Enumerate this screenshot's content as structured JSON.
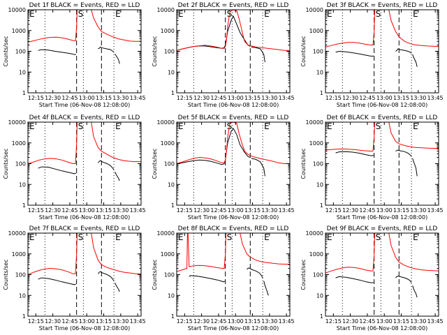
{
  "page": {
    "background": "#ffffff"
  },
  "colors": {
    "events": "#000000",
    "lld": "#ff0000",
    "axis": "#000000"
  },
  "shared": {
    "ylabel": "Counts/sec",
    "xlabel": "Start Time (06-Nov-08 12:08:00)",
    "xtick_labels": [
      "12:15",
      "12:30",
      "12:45",
      "13:00",
      "13:15",
      "13:30",
      "13:45"
    ],
    "xtick_minutes": [
      7,
      22,
      37,
      52,
      67,
      82,
      97
    ],
    "xlim_minutes": [
      0,
      100
    ],
    "ytick_labels": [
      "1",
      "10",
      "100",
      "1000",
      "10000"
    ],
    "ytick_values": [
      1,
      10,
      100,
      1000,
      10000
    ],
    "ylim": [
      1,
      10000
    ],
    "yscale": "log",
    "markers": [
      {
        "label": "E",
        "minute": 0,
        "line": "none"
      },
      {
        "label": "",
        "minute": 15,
        "line": "dotted"
      },
      {
        "label": "S",
        "minute": 43,
        "line": "dashed"
      },
      {
        "label": "",
        "minute": 49,
        "line": "dotted"
      },
      {
        "label": "",
        "minute": 65,
        "line": "dashed"
      },
      {
        "label": "E",
        "minute": 76,
        "line": "dotted"
      }
    ]
  },
  "chart_data": [
    {
      "type": "line",
      "title": "Det 1f BLACK = Events, RED = LLD",
      "series": [
        {
          "name": "Events",
          "x": [
            9,
            12,
            18,
            24,
            30,
            36,
            39,
            41,
            42.5,
            "|",
            62,
            63,
            64,
            66,
            70,
            73,
            75,
            76,
            "|",
            77,
            78,
            80,
            81
          ],
          "y": [
            110,
            120,
            115,
            100,
            90,
            80,
            75,
            70,
            70,
            null,
            130,
            140,
            160,
            145,
            130,
            120,
            100,
            90,
            null,
            75,
            60,
            40,
            25
          ]
        },
        {
          "name": "LLD",
          "x": [
            0,
            5,
            10,
            15,
            20,
            25,
            30,
            35,
            40,
            42,
            43,
            43.5,
            "|",
            56,
            58,
            62,
            65,
            70,
            75,
            80,
            85,
            90,
            95,
            100
          ],
          "y": [
            280,
            320,
            380,
            430,
            470,
            480,
            450,
            390,
            330,
            320,
            1500,
            10000,
            null,
            10000,
            4000,
            1500,
            900,
            650,
            500,
            400,
            350,
            310,
            300,
            300
          ]
        }
      ]
    },
    {
      "type": "line",
      "title": "Det 2f BLACK = Events, RED = LLD",
      "series": [
        {
          "name": "Events",
          "x": [
            0,
            5,
            10,
            15,
            20,
            25,
            30,
            35,
            40,
            42,
            43,
            44,
            45,
            48,
            50,
            53,
            56,
            60,
            63,
            65,
            "|",
            66,
            70,
            74,
            77,
            78
          ],
          "y": [
            110,
            130,
            150,
            170,
            180,
            180,
            165,
            150,
            140,
            150,
            200,
            400,
            900,
            3000,
            5000,
            2000,
            800,
            350,
            200,
            170,
            null,
            160,
            150,
            130,
            70,
            30
          ]
        },
        {
          "name": "LLD",
          "x": [
            0,
            5,
            10,
            15,
            20,
            25,
            30,
            35,
            40,
            42,
            43,
            44,
            45,
            47,
            50,
            53,
            55,
            58,
            60,
            63,
            66,
            70,
            75,
            80,
            85,
            90,
            95,
            100
          ],
          "y": [
            110,
            130,
            150,
            170,
            185,
            195,
            180,
            160,
            140,
            140,
            170,
            350,
            1500,
            8000,
            10000,
            9000,
            4000,
            800,
            300,
            200,
            180,
            160,
            150,
            140,
            130,
            120,
            110,
            110
          ]
        }
      ]
    },
    {
      "type": "line",
      "title": "Det 3f BLACK = Events, RED = LLD",
      "series": [
        {
          "name": "Events",
          "x": [
            9,
            12,
            18,
            24,
            30,
            36,
            39,
            41,
            42.5,
            "|",
            62,
            63,
            64,
            66,
            70,
            73,
            75,
            76,
            "|",
            77,
            78,
            80,
            81
          ],
          "y": [
            90,
            100,
            95,
            85,
            75,
            65,
            60,
            58,
            60,
            null,
            100,
            110,
            130,
            120,
            110,
            100,
            90,
            80,
            null,
            70,
            50,
            30,
            18
          ]
        },
        {
          "name": "LLD",
          "x": [
            0,
            5,
            10,
            15,
            20,
            25,
            30,
            35,
            40,
            42,
            43,
            43.5,
            "|",
            56,
            58,
            62,
            65,
            70,
            75,
            80,
            85,
            90,
            95,
            100
          ],
          "y": [
            160,
            190,
            220,
            250,
            270,
            270,
            250,
            220,
            200,
            200,
            900,
            10000,
            null,
            10000,
            3000,
            900,
            500,
            300,
            230,
            200,
            190,
            180,
            175,
            170
          ]
        }
      ]
    },
    {
      "type": "line",
      "title": "Det 4f BLACK = Events, RED = LLD",
      "series": [
        {
          "name": "Events",
          "x": [
            9,
            12,
            18,
            24,
            30,
            36,
            39,
            41,
            42.5,
            "|",
            62,
            63,
            64,
            66,
            70,
            73,
            75,
            76,
            "|",
            77,
            78,
            80,
            81
          ],
          "y": [
            60,
            70,
            68,
            55,
            45,
            38,
            35,
            33,
            35,
            null,
            110,
            130,
            140,
            120,
            100,
            80,
            60,
            50,
            null,
            40,
            30,
            20,
            15
          ]
        },
        {
          "name": "LLD",
          "x": [
            0,
            5,
            10,
            15,
            20,
            25,
            30,
            35,
            40,
            42,
            43,
            43.5,
            "|",
            56,
            58,
            62,
            65,
            70,
            75,
            80,
            85,
            90,
            95,
            100
          ],
          "y": [
            100,
            120,
            150,
            170,
            180,
            170,
            150,
            120,
            100,
            100,
            900,
            10000,
            null,
            10000,
            2000,
            600,
            400,
            280,
            200,
            160,
            140,
            130,
            125,
            125
          ]
        }
      ]
    },
    {
      "type": "line",
      "title": "Det 5f BLACK = Events, RED = LLD",
      "series": [
        {
          "name": "Events",
          "x": [
            0,
            5,
            10,
            15,
            20,
            25,
            30,
            35,
            40,
            42,
            43,
            44,
            45,
            48,
            50,
            53,
            56,
            60,
            63,
            65,
            "|",
            66,
            70,
            74,
            77,
            78
          ],
          "y": [
            100,
            110,
            125,
            140,
            150,
            145,
            130,
            110,
            90,
            100,
            150,
            400,
            1000,
            3500,
            5000,
            2500,
            800,
            350,
            220,
            200,
            null,
            180,
            160,
            120,
            60,
            25
          ]
        },
        {
          "name": "LLD",
          "x": [
            0,
            5,
            10,
            15,
            20,
            25,
            30,
            35,
            40,
            42,
            43,
            44,
            45,
            47,
            50,
            53,
            55,
            58,
            60,
            63,
            66,
            70,
            75,
            80,
            85,
            90,
            95,
            100
          ],
          "y": [
            100,
            120,
            150,
            180,
            200,
            190,
            170,
            140,
            110,
            110,
            150,
            400,
            1800,
            9000,
            10000,
            9000,
            3000,
            800,
            400,
            280,
            230,
            200,
            170,
            150,
            130,
            110,
            100,
            100
          ]
        }
      ]
    },
    {
      "type": "line",
      "title": "Det 6f BLACK = Events, RED = LLD",
      "series": [
        {
          "name": "Events",
          "x": [
            9,
            12,
            18,
            24,
            30,
            36,
            39,
            41,
            42.5,
            "|",
            62,
            63,
            64,
            66,
            70,
            73,
            75,
            76,
            "|",
            77,
            78,
            80,
            81
          ],
          "y": [
            330,
            370,
            380,
            360,
            320,
            270,
            250,
            240,
            260,
            null,
            400,
            430,
            450,
            420,
            380,
            320,
            260,
            220,
            null,
            180,
            120,
            60,
            25
          ]
        },
        {
          "name": "LLD",
          "x": [
            0,
            5,
            10,
            15,
            20,
            25,
            30,
            35,
            40,
            42,
            43,
            43.5,
            "|",
            56,
            58,
            62,
            65,
            70,
            75,
            80,
            85,
            90,
            95,
            100
          ],
          "y": [
            450,
            480,
            500,
            510,
            500,
            480,
            450,
            420,
            400,
            410,
            2000,
            10000,
            null,
            10000,
            3000,
            1200,
            900,
            750,
            650,
            600,
            580,
            560,
            550,
            550
          ]
        }
      ]
    },
    {
      "type": "line",
      "title": "Det 7f BLACK = Events, RED = LLD",
      "series": [
        {
          "name": "Events",
          "x": [
            9,
            12,
            18,
            24,
            30,
            36,
            39,
            41,
            42.5,
            "|",
            62,
            63,
            64,
            66,
            70,
            73,
            75,
            76,
            "|",
            77,
            78,
            80,
            81
          ],
          "y": [
            60,
            70,
            65,
            55,
            45,
            38,
            35,
            33,
            35,
            null,
            110,
            130,
            140,
            120,
            100,
            80,
            60,
            50,
            null,
            40,
            30,
            20,
            15
          ]
        },
        {
          "name": "LLD",
          "x": [
            0,
            5,
            10,
            15,
            20,
            25,
            30,
            35,
            40,
            42,
            43,
            43.5,
            "|",
            56,
            58,
            62,
            65,
            70,
            75,
            80,
            85,
            90,
            95,
            100
          ],
          "y": [
            100,
            130,
            160,
            190,
            200,
            190,
            170,
            140,
            110,
            110,
            1000,
            10000,
            null,
            10000,
            2000,
            500,
            300,
            220,
            180,
            150,
            130,
            120,
            110,
            110
          ]
        }
      ]
    },
    {
      "type": "line",
      "title": "Det 8f BLACK = Events, RED = LLD",
      "series": [
        {
          "name": "Events",
          "x": [
            11,
            12,
            18,
            24,
            30,
            36,
            39,
            41,
            42.5,
            "|",
            62,
            63,
            64,
            66,
            70,
            73,
            75,
            76,
            "|",
            77,
            78,
            80,
            81
          ],
          "y": [
            80,
            90,
            85,
            75,
            65,
            55,
            50,
            45,
            48,
            null,
            180,
            200,
            210,
            180,
            150,
            120,
            90,
            70,
            null,
            50,
            30,
            15,
            10
          ]
        },
        {
          "name": "LLD",
          "x": [
            0,
            5,
            9,
            9.5,
            10,
            11,
            15,
            20,
            25,
            30,
            35,
            40,
            42,
            43,
            43.5,
            "|",
            56,
            58,
            62,
            65,
            70,
            75,
            80,
            85,
            90,
            95,
            100
          ],
          "y": [
            140,
            170,
            200,
            10000,
            10000,
            240,
            270,
            280,
            270,
            250,
            220,
            200,
            200,
            1000,
            10000,
            null,
            10000,
            3000,
            1000,
            700,
            500,
            420,
            380,
            350,
            330,
            320,
            320
          ]
        }
      ]
    },
    {
      "type": "line",
      "title": "Det 9f BLACK = Events, RED = LLD",
      "series": [
        {
          "name": "Events",
          "x": [
            9,
            12,
            18,
            24,
            30,
            36,
            39,
            41,
            42.5,
            "|",
            62,
            63,
            64,
            66,
            70,
            73,
            75,
            76,
            "|",
            77,
            78,
            80,
            81
          ],
          "y": [
            70,
            80,
            75,
            65,
            55,
            45,
            42,
            40,
            42,
            null,
            70,
            80,
            85,
            80,
            70,
            60,
            50,
            40,
            null,
            30,
            20,
            12,
            8
          ]
        },
        {
          "name": "LLD",
          "x": [
            0,
            5,
            10,
            15,
            20,
            25,
            30,
            35,
            40,
            42,
            43,
            43.5,
            "|",
            56,
            58,
            62,
            65,
            70,
            75,
            80,
            85,
            90,
            95,
            100
          ],
          "y": [
            120,
            150,
            180,
            210,
            230,
            220,
            200,
            170,
            150,
            150,
            900,
            10000,
            null,
            10000,
            2500,
            700,
            400,
            280,
            220,
            190,
            170,
            160,
            155,
            150
          ]
        }
      ]
    }
  ]
}
